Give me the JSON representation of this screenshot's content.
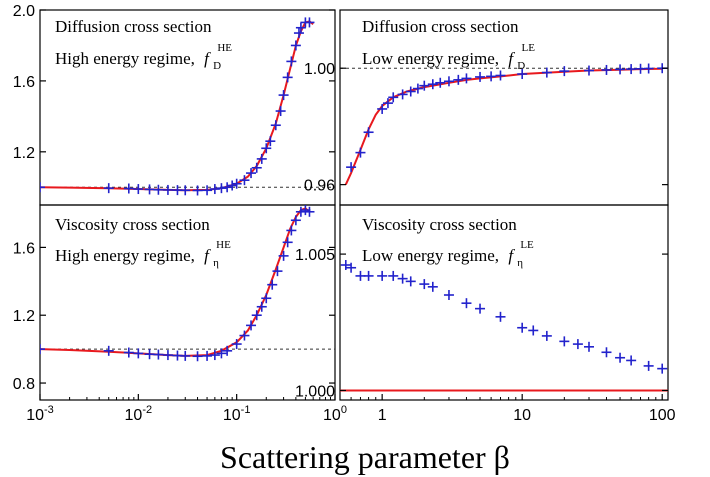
{
  "xlabel": "Scattering parameter β",
  "chart_data": [
    {
      "type": "line",
      "panel": "top-left",
      "title": "Diffusion cross section",
      "subtitle": "High energy regime,",
      "symbol_base": "f",
      "symbol_sub": "D",
      "symbol_sup": "HE",
      "xscale": "log",
      "xlim": [
        0.001,
        1
      ],
      "ylim": [
        0.9,
        2.0
      ],
      "yticks": [
        1.2,
        1.6,
        2.0
      ],
      "ytick_labels": [
        "1.2",
        "1.6",
        "2.0"
      ],
      "reference_line": 1.0,
      "series": [
        {
          "style": "curve",
          "color": "#e8191e",
          "x": [
            0.001,
            0.002,
            0.005,
            0.01,
            0.02,
            0.03,
            0.05,
            0.07,
            0.1,
            0.13,
            0.16,
            0.2,
            0.25,
            0.3,
            0.35,
            0.4,
            0.45,
            0.5,
            0.55,
            0.6
          ],
          "y": [
            1.0,
            0.998,
            0.994,
            0.99,
            0.985,
            0.983,
            0.985,
            0.995,
            1.02,
            1.06,
            1.12,
            1.22,
            1.36,
            1.52,
            1.67,
            1.8,
            1.88,
            1.93,
            1.935,
            1.92
          ]
        },
        {
          "style": "plus",
          "color": "#2222cc",
          "x": [
            0.001,
            0.005,
            0.008,
            0.01,
            0.013,
            0.016,
            0.02,
            0.025,
            0.03,
            0.04,
            0.05,
            0.06,
            0.07,
            0.08,
            0.09,
            0.1,
            0.12,
            0.14,
            0.16,
            0.18,
            0.2,
            0.22,
            0.25,
            0.28,
            0.3,
            0.33,
            0.36,
            0.4,
            0.43,
            0.45,
            0.5,
            0.55
          ],
          "y": [
            1.0,
            0.995,
            0.993,
            0.99,
            0.988,
            0.986,
            0.985,
            0.984,
            0.983,
            0.982,
            0.983,
            0.99,
            0.995,
            1.0,
            1.01,
            1.02,
            1.04,
            1.08,
            1.11,
            1.16,
            1.22,
            1.26,
            1.35,
            1.43,
            1.52,
            1.62,
            1.71,
            1.8,
            1.87,
            1.9,
            1.93,
            1.93
          ]
        }
      ]
    },
    {
      "type": "line",
      "panel": "top-right",
      "title": "Diffusion cross section",
      "subtitle": "Low energy regime,",
      "symbol_base": "f",
      "symbol_sub": "D",
      "symbol_sup": "LE",
      "xscale": "log",
      "xlim": [
        0.5,
        110
      ],
      "ylim": [
        0.953,
        1.02
      ],
      "yticks": [
        0.96,
        1.0
      ],
      "ytick_labels": [
        "0.96",
        "1.00"
      ],
      "reference_line": 1.0,
      "series": [
        {
          "style": "curve",
          "color": "#e8191e",
          "x": [
            0.55,
            0.6,
            0.7,
            0.8,
            0.9,
            1.0,
            1.2,
            1.5,
            2,
            3,
            4,
            5,
            7,
            10,
            20,
            30,
            50,
            70,
            100
          ],
          "y": [
            0.96,
            0.964,
            0.972,
            0.979,
            0.984,
            0.987,
            0.99,
            0.992,
            0.9935,
            0.995,
            0.996,
            0.9965,
            0.9972,
            0.998,
            0.9988,
            0.9992,
            0.9995,
            0.9997,
            0.9998
          ]
        },
        {
          "style": "plus",
          "color": "#2222cc",
          "x": [
            0.6,
            0.7,
            0.8,
            1.0,
            1.1,
            1.2,
            1.4,
            1.6,
            1.8,
            2.0,
            2.3,
            2.6,
            3,
            3.5,
            4,
            5,
            6,
            7,
            10,
            15,
            20,
            30,
            40,
            50,
            60,
            70,
            80,
            100
          ],
          "y": [
            0.966,
            0.971,
            0.978,
            0.986,
            0.988,
            0.99,
            0.991,
            0.992,
            0.993,
            0.994,
            0.9945,
            0.995,
            0.9955,
            0.996,
            0.9965,
            0.997,
            0.9972,
            0.9975,
            0.998,
            0.9985,
            0.999,
            0.9992,
            0.9994,
            0.9996,
            0.9997,
            0.9998,
            0.9999,
            1.0
          ]
        }
      ]
    },
    {
      "type": "line",
      "panel": "bottom-left",
      "title": "Viscosity cross section",
      "subtitle": "High energy regime,",
      "symbol_base": "f",
      "symbol_sub": "η",
      "symbol_sup": "HE",
      "xscale": "log",
      "xlim": [
        0.001,
        1
      ],
      "ylim": [
        0.7,
        1.85
      ],
      "yticks": [
        0.8,
        1.2,
        1.6
      ],
      "ytick_labels": [
        "0.8",
        "1.2",
        "1.6"
      ],
      "xticks": [
        0.001,
        0.01,
        0.1,
        1
      ],
      "xtick_base": "10",
      "xtick_exponents": [
        "-3",
        "-2",
        "-1",
        "0"
      ],
      "reference_line": 1.0,
      "series": [
        {
          "style": "curve",
          "color": "#e8191e",
          "x": [
            0.001,
            0.002,
            0.005,
            0.01,
            0.02,
            0.03,
            0.05,
            0.07,
            0.1,
            0.13,
            0.16,
            0.2,
            0.25,
            0.3,
            0.35,
            0.4,
            0.45,
            0.5,
            0.55
          ],
          "y": [
            1.0,
            0.995,
            0.985,
            0.975,
            0.965,
            0.96,
            0.965,
            0.99,
            1.04,
            1.11,
            1.2,
            1.32,
            1.47,
            1.6,
            1.71,
            1.78,
            1.82,
            1.83,
            1.81
          ]
        },
        {
          "style": "plus",
          "color": "#2222cc",
          "x": [
            0.001,
            0.005,
            0.008,
            0.01,
            0.013,
            0.016,
            0.02,
            0.025,
            0.03,
            0.04,
            0.05,
            0.06,
            0.07,
            0.08,
            0.1,
            0.12,
            0.14,
            0.16,
            0.18,
            0.2,
            0.23,
            0.26,
            0.3,
            0.33,
            0.36,
            0.4,
            0.45,
            0.5,
            0.55
          ],
          "y": [
            1.0,
            0.99,
            0.98,
            0.975,
            0.97,
            0.968,
            0.965,
            0.962,
            0.96,
            0.958,
            0.96,
            0.965,
            0.975,
            0.99,
            1.03,
            1.08,
            1.14,
            1.2,
            1.25,
            1.3,
            1.38,
            1.46,
            1.55,
            1.63,
            1.7,
            1.76,
            1.81,
            1.82,
            1.81
          ]
        }
      ]
    },
    {
      "type": "line",
      "panel": "bottom-right",
      "title": "Viscosity cross section",
      "subtitle": "Low energy regime,",
      "symbol_base": "f",
      "symbol_sub": "η",
      "symbol_sup": "LE",
      "xscale": "log",
      "xlim": [
        0.5,
        110
      ],
      "ylim": [
        0.99965,
        1.0068
      ],
      "yticks": [
        1.0,
        1.005
      ],
      "ytick_labels": [
        "1.000",
        "1.005"
      ],
      "xticks": [
        1,
        10,
        100
      ],
      "xtick_labels": [
        "1",
        "10",
        "100"
      ],
      "series": [
        {
          "style": "curve",
          "color": "#e8191e",
          "x": [
            0.5,
            110
          ],
          "y": [
            1.0,
            1.0
          ]
        },
        {
          "style": "plus",
          "color": "#2222cc",
          "x": [
            0.55,
            0.6,
            0.7,
            0.8,
            1.0,
            1.2,
            1.4,
            1.6,
            2.0,
            2.3,
            3,
            4,
            5,
            7,
            10,
            12,
            15,
            20,
            25,
            30,
            40,
            50,
            60,
            80,
            100
          ],
          "y": [
            1.0046,
            1.0045,
            1.0042,
            1.0042,
            1.0042,
            1.0042,
            1.0041,
            1.004,
            1.0039,
            1.0038,
            1.0035,
            1.0032,
            1.003,
            1.0027,
            1.0023,
            1.0022,
            1.002,
            1.0018,
            1.0017,
            1.0016,
            1.0014,
            1.0012,
            1.0011,
            1.0009,
            1.0008
          ]
        }
      ]
    }
  ]
}
